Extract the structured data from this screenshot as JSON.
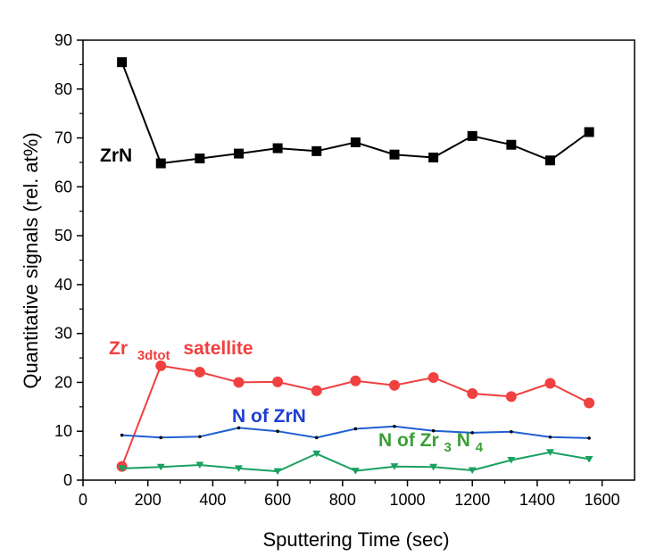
{
  "chart_data": {
    "type": "line",
    "title": "",
    "xlabel": "Sputtering Time (sec)",
    "ylabel": "Quantitative signals (rel. at%)",
    "xlim": [
      0,
      1700
    ],
    "ylim": [
      0,
      90
    ],
    "xticks": [
      0,
      200,
      400,
      600,
      800,
      1000,
      1200,
      1400,
      1600
    ],
    "yticks": [
      0,
      10,
      20,
      30,
      40,
      50,
      60,
      70,
      80,
      90
    ],
    "x": [
      120,
      240,
      360,
      480,
      600,
      720,
      840,
      960,
      1080,
      1200,
      1320,
      1440,
      1560
    ],
    "series": [
      {
        "name": "ZrN",
        "color": "#000000",
        "marker": "square",
        "values": [
          85.5,
          64.8,
          65.8,
          66.8,
          67.9,
          67.3,
          69.1,
          66.6,
          66.0,
          70.4,
          68.6,
          65.4,
          71.2
        ]
      },
      {
        "name": "Zr 3dtot satellite",
        "label_main": "Zr",
        "label_sub": "3dtot",
        "label_rest": "satellite",
        "color": "#f04040",
        "marker": "circle",
        "values": [
          2.8,
          23.4,
          22.1,
          20.0,
          20.1,
          18.3,
          20.3,
          19.4,
          21.0,
          17.7,
          17.1,
          19.8,
          15.8
        ]
      },
      {
        "name": "N of ZrN",
        "color": "#1f5fd0",
        "marker": "dot",
        "values": [
          9.2,
          8.7,
          8.9,
          10.7,
          10.0,
          8.7,
          10.5,
          11.0,
          10.1,
          9.7,
          9.9,
          8.8,
          8.6
        ]
      },
      {
        "name": "N of Zr3N4",
        "label_parts": [
          "N of Zr",
          "3",
          "N",
          "4"
        ],
        "color": "#1aa060",
        "label_color": "#3aa035",
        "marker": "triangle-down",
        "values": [
          2.4,
          2.7,
          3.1,
          2.4,
          1.8,
          5.4,
          1.9,
          2.8,
          2.7,
          2.0,
          4.1,
          5.7,
          4.3
        ]
      }
    ]
  }
}
